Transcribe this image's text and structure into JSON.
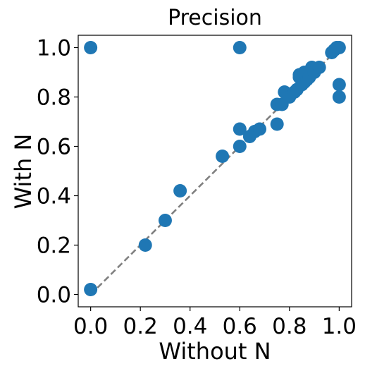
{
  "chart_data": {
    "type": "scatter",
    "title": "Precision",
    "xlabel": "Without N",
    "ylabel": "With N",
    "xlim": [
      -0.05,
      1.05
    ],
    "ylim": [
      -0.05,
      1.05
    ],
    "xticks": [
      0.0,
      0.2,
      0.4,
      0.6,
      0.8,
      1.0
    ],
    "yticks": [
      0.0,
      0.2,
      0.4,
      0.6,
      0.8,
      1.0
    ],
    "xtick_labels": [
      "0.0",
      "0.2",
      "0.4",
      "0.6",
      "0.8",
      "1.0"
    ],
    "ytick_labels": [
      "0.0",
      "0.2",
      "0.4",
      "0.6",
      "0.8",
      "1.0"
    ],
    "grid": false,
    "reference_line": {
      "from": [
        0,
        0
      ],
      "to": [
        1,
        1
      ],
      "style": "dashed",
      "color": "#808080"
    },
    "marker_color": "#1f77b4",
    "points": [
      [
        0.0,
        1.0
      ],
      [
        0.6,
        1.0
      ],
      [
        0.0,
        0.02
      ],
      [
        0.22,
        0.2
      ],
      [
        0.3,
        0.3
      ],
      [
        0.36,
        0.42
      ],
      [
        0.53,
        0.56
      ],
      [
        0.6,
        0.6
      ],
      [
        0.6,
        0.67
      ],
      [
        0.64,
        0.64
      ],
      [
        0.66,
        0.66
      ],
      [
        0.68,
        0.67
      ],
      [
        0.75,
        0.69
      ],
      [
        0.75,
        0.77
      ],
      [
        0.77,
        0.77
      ],
      [
        0.78,
        0.82
      ],
      [
        0.8,
        0.8
      ],
      [
        0.82,
        0.82
      ],
      [
        0.83,
        0.83
      ],
      [
        0.84,
        0.88
      ],
      [
        0.84,
        0.89
      ],
      [
        0.85,
        0.85
      ],
      [
        0.86,
        0.9
      ],
      [
        0.86,
        0.86
      ],
      [
        0.87,
        0.87
      ],
      [
        0.88,
        0.88
      ],
      [
        0.89,
        0.92
      ],
      [
        0.9,
        0.9
      ],
      [
        0.92,
        0.92
      ],
      [
        0.97,
        0.98
      ],
      [
        0.98,
        0.99
      ],
      [
        0.99,
        1.0
      ],
      [
        1.0,
        1.0
      ],
      [
        1.0,
        0.85
      ],
      [
        1.0,
        0.8
      ]
    ]
  }
}
